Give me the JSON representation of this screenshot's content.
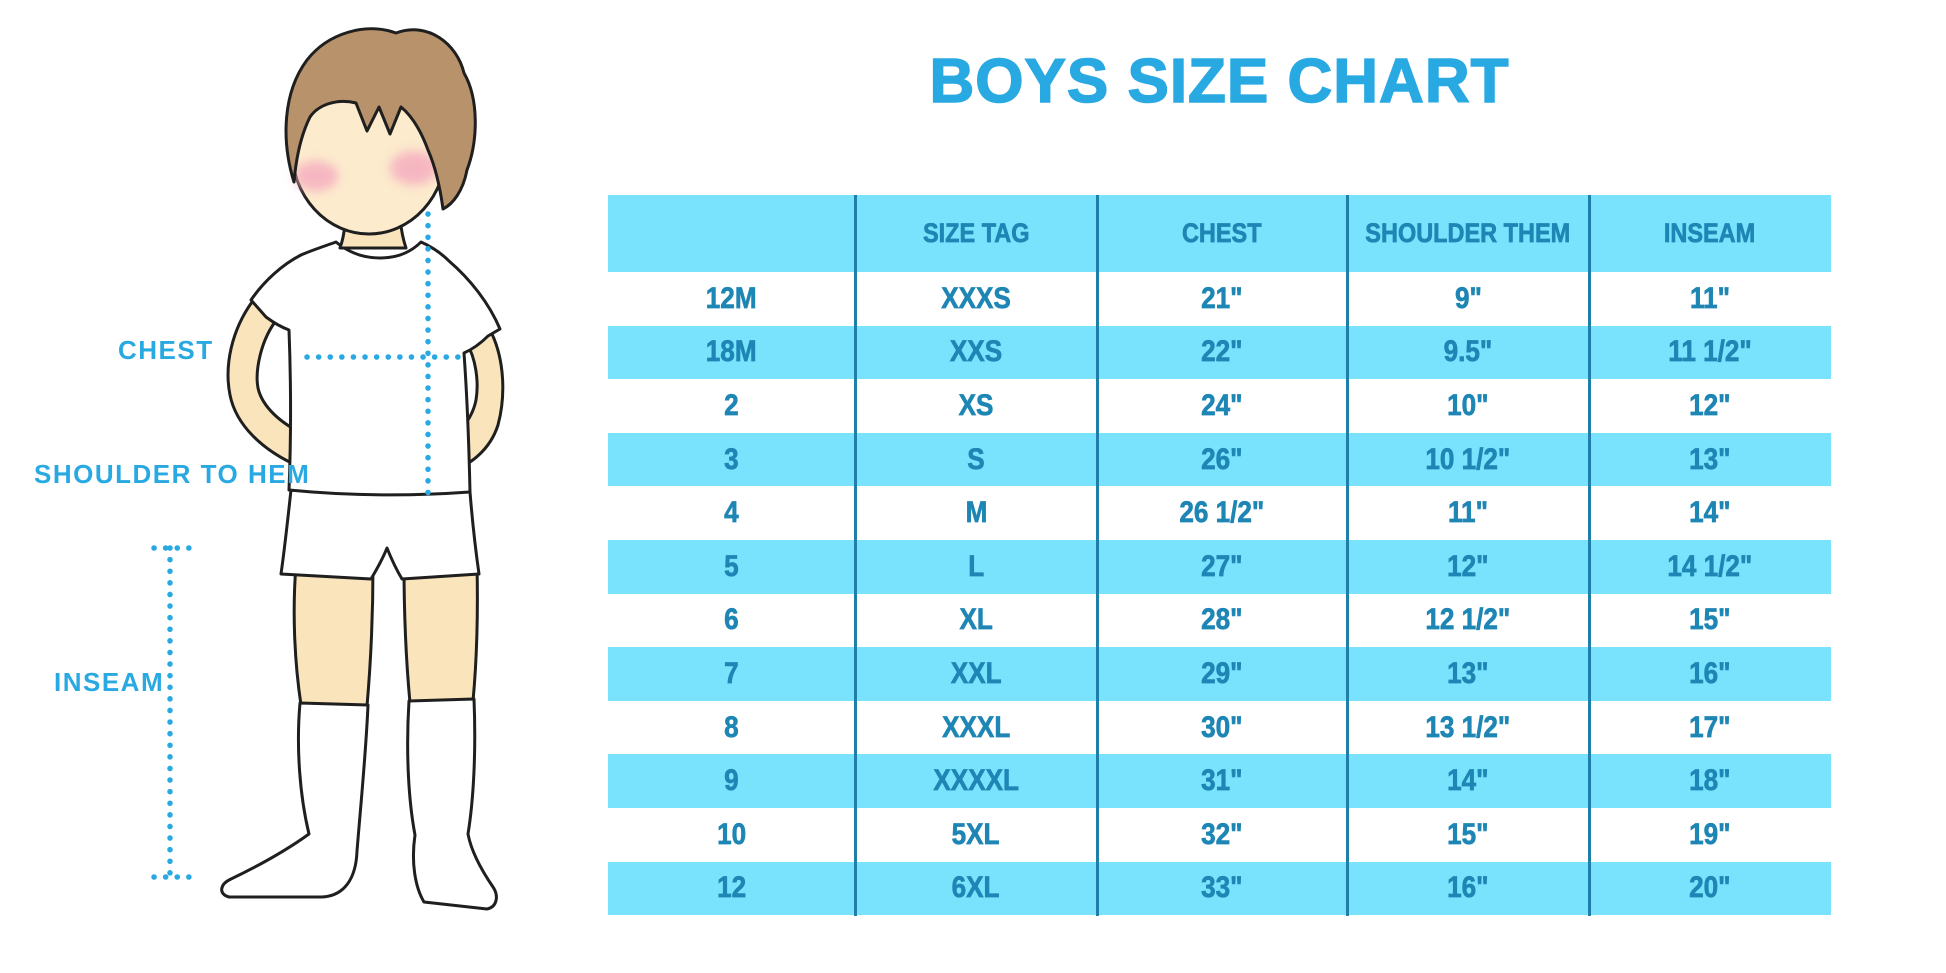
{
  "title": "BOYS SIZE CHART",
  "diagram": {
    "labels": {
      "chest": "CHEST",
      "shoulder_to_hem": "SHOULDER TO HEM",
      "inseam": "INSEAM"
    }
  },
  "chart_data": {
    "type": "table",
    "title": "BOYS SIZE CHART",
    "columns": [
      "",
      "SIZE TAG",
      "CHEST",
      "SHOULDER THEM",
      "INSEAM"
    ],
    "rows": [
      [
        "12M",
        "XXXS",
        "21\"",
        "9\"",
        "11\""
      ],
      [
        "18M",
        "XXS",
        "22\"",
        "9.5\"",
        "11 1/2\""
      ],
      [
        "2",
        "XS",
        "24\"",
        "10\"",
        "12\""
      ],
      [
        "3",
        "S",
        "26\"",
        "10 1/2\"",
        "13\""
      ],
      [
        "4",
        "M",
        "26 1/2\"",
        "11\"",
        "14\""
      ],
      [
        "5",
        "L",
        "27\"",
        "12\"",
        "14 1/2\""
      ],
      [
        "6",
        "XL",
        "28\"",
        "12 1/2\"",
        "15\""
      ],
      [
        "7",
        "XXL",
        "29\"",
        "13\"",
        "16\""
      ],
      [
        "8",
        "XXXL",
        "30\"",
        "13 1/2\"",
        "17\""
      ],
      [
        "9",
        "XXXXL",
        "31\"",
        "14\"",
        "18\""
      ],
      [
        "10",
        "5XL",
        "32\"",
        "15\"",
        "19\""
      ],
      [
        "12",
        "6XL",
        "33\"",
        "16\"",
        "20\""
      ]
    ],
    "striping": "alternating white / light-blue rows, header band light-blue",
    "grid": "vertical column dividers only"
  },
  "colors": {
    "accent_blue": "#29a9e2",
    "band_blue": "#79e2fc",
    "table_text": "#1e86b4",
    "divider": "#1f7fa8",
    "skin": "#fae4bc",
    "face": "#fcebcd",
    "hair": "#b8926a",
    "blush": "#f5aabf",
    "outline": "#1f1f1f"
  }
}
